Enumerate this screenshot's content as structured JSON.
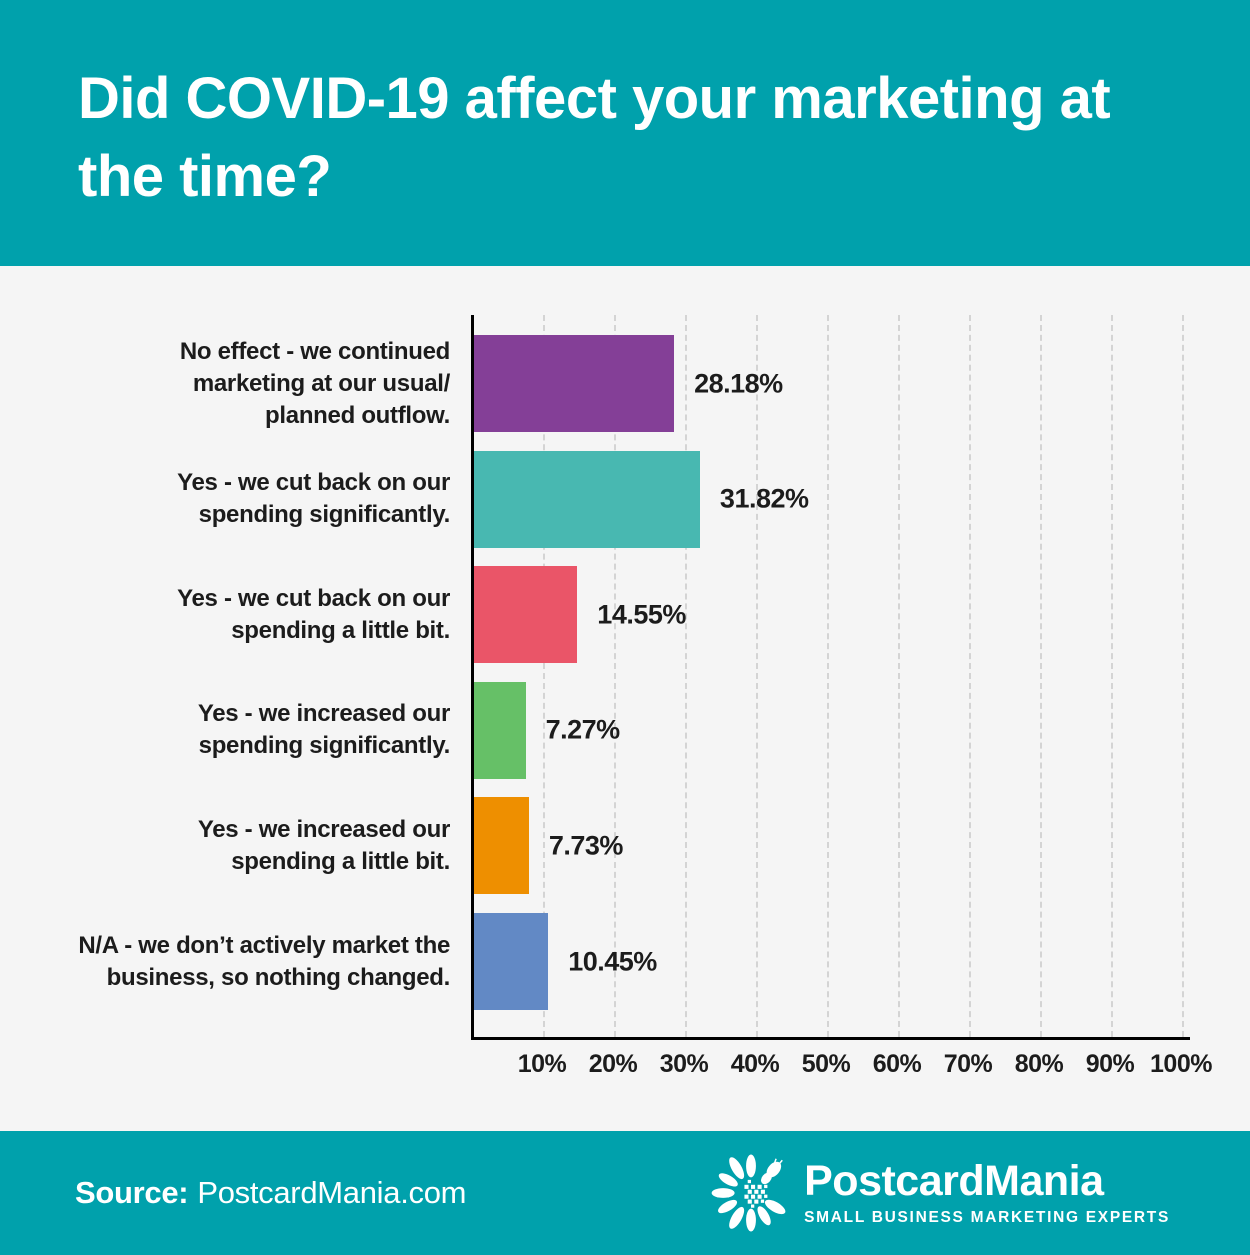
{
  "header": {
    "title_line1": "Did COVID-19 affect your marketing at",
    "title_line2": "the time?"
  },
  "colors": {
    "banner_teal": "#00A1AC",
    "page_background": "#F5F5F5",
    "text_dark": "#1C1C1C",
    "gridline": "#D4D4D4",
    "axis": "#000000"
  },
  "chart_data": {
    "type": "bar",
    "orientation": "horizontal",
    "title": "Did COVID-19 affect your marketing at the time?",
    "xlabel": "",
    "ylabel": "",
    "x_axis": {
      "min": 0,
      "max": 100,
      "unit": "%",
      "tick_labels": [
        "10%",
        "20%",
        "30%",
        "40%",
        "50%",
        "60%",
        "70%",
        "80%",
        "90%",
        "100%"
      ],
      "gridlines": "vertical-dashed"
    },
    "legend": "none",
    "categories": [
      "No effect - we continued marketing at our usual/ planned outflow.",
      "Yes - we cut back on our spending significantly.",
      "Yes - we cut back on our spending a little bit.",
      "Yes - we increased our spending significantly.",
      "Yes - we increased our spending a little bit.",
      "N/A - we don’t actively market the business, so nothing changed."
    ],
    "values": [
      28.18,
      31.82,
      14.55,
      7.27,
      7.73,
      10.45
    ],
    "rows": [
      {
        "label_lines": [
          "No effect - we continued",
          "marketing at our usual/",
          "planned outflow."
        ],
        "value": 28.18,
        "value_label": "28.18%",
        "color": "#843F97"
      },
      {
        "label_lines": [
          "Yes - we cut back on our",
          "spending significantly."
        ],
        "value": 31.82,
        "value_label": "31.82%",
        "color": "#48B8B1"
      },
      {
        "label_lines": [
          "Yes - we cut back on our",
          "spending a little bit."
        ],
        "value": 14.55,
        "value_label": "14.55%",
        "color": "#EA5568"
      },
      {
        "label_lines": [
          "Yes - we increased our",
          "spending significantly."
        ],
        "value": 7.27,
        "value_label": "7.27%",
        "color": "#66C067"
      },
      {
        "label_lines": [
          "Yes - we increased our",
          "spending a little bit."
        ],
        "value": 7.73,
        "value_label": "7.73%",
        "color": "#EE8F00"
      },
      {
        "label_lines": [
          "N/A - we don’t actively market the",
          "business, so nothing changed."
        ],
        "value": 10.45,
        "value_label": "10.45%",
        "color": "#6289C5"
      }
    ]
  },
  "footer": {
    "source_label": "Source:",
    "source_value": "PostcardMania.com",
    "logo": {
      "brand": "PostcardMania",
      "tagline": "SMALL BUSINESS MARKETING EXPERTS",
      "icon": "flower-burst-icon"
    }
  }
}
